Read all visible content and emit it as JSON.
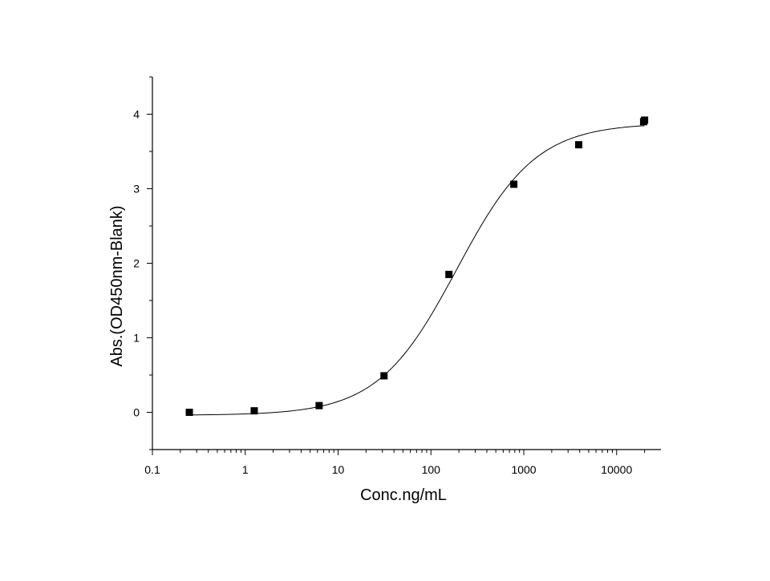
{
  "chart_data": {
    "type": "scatter",
    "title": "",
    "xlabel": "Conc.ng/mL",
    "ylabel": "Abs.(OD450nm-Blank)",
    "xscale": "log",
    "xlim": [
      0.1,
      30000
    ],
    "ylim": [
      -0.5,
      4.5
    ],
    "x_ticks": [
      {
        "value": 0.1,
        "label": "0.1"
      },
      {
        "value": 1,
        "label": "1"
      },
      {
        "value": 10,
        "label": "10"
      },
      {
        "value": 100,
        "label": "100"
      },
      {
        "value": 1000,
        "label": "1000"
      },
      {
        "value": 10000,
        "label": "10000"
      }
    ],
    "y_ticks": [
      {
        "value": 0,
        "label": "0"
      },
      {
        "value": 1,
        "label": "1"
      },
      {
        "value": 2,
        "label": "2"
      },
      {
        "value": 3,
        "label": "3"
      },
      {
        "value": 4,
        "label": "4"
      }
    ],
    "grid": false,
    "legend": "none",
    "series": [
      {
        "name": "data",
        "marker": "square",
        "x": [
          0.25,
          1.25,
          6.25,
          31.25,
          156.25,
          781.25,
          3906.25,
          19531.25,
          20000
        ],
        "y": [
          0.0,
          0.02,
          0.09,
          0.49,
          1.85,
          3.06,
          3.59,
          3.9,
          3.92
        ]
      }
    ],
    "fit": {
      "model": "4PL",
      "bottom": -0.04,
      "top": 3.88,
      "ec50": 190,
      "hill": 1.02
    },
    "colors": {
      "marker": "#000000",
      "line": "#000000",
      "axis": "#000000"
    }
  }
}
